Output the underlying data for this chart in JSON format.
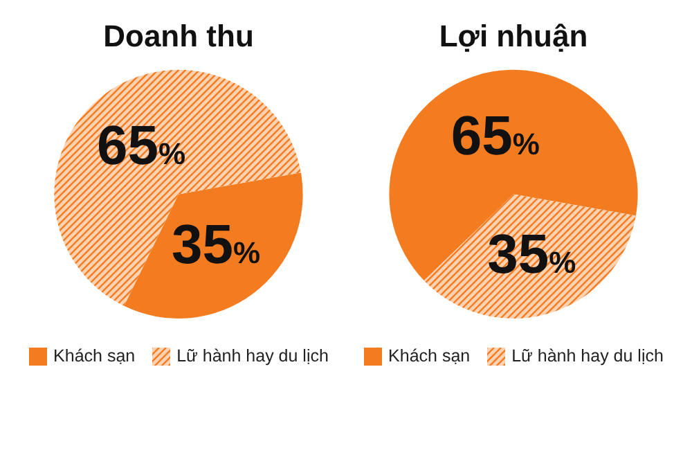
{
  "chart_data": [
    {
      "type": "pie",
      "title": "Doanh thu",
      "categories": [
        "Khách sạn",
        "Lữ hành hay du lịch"
      ],
      "values": [
        35,
        65
      ],
      "colors": [
        "#f47c20",
        "#fbd3b3"
      ],
      "value_labels": [
        "35%",
        "65%"
      ],
      "legend": "bottom"
    },
    {
      "type": "pie",
      "title": "Lợi nhuận",
      "categories": [
        "Khách sạn",
        "Lữ hành hay du lịch"
      ],
      "values": [
        65,
        35
      ],
      "colors": [
        "#f47c20",
        "#fbd3b3"
      ],
      "value_labels": [
        "65%",
        "35%"
      ],
      "legend": "bottom"
    }
  ]
}
